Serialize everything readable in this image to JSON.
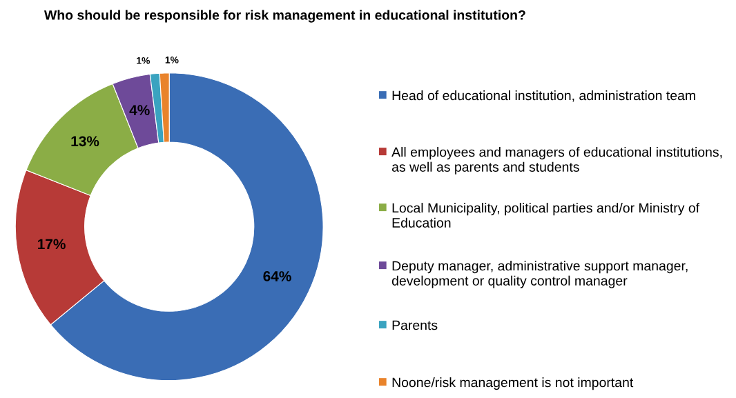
{
  "chart_data": {
    "type": "donut",
    "title": "Who should be responsible for risk management in educational institution?",
    "categories": [
      "Head of educational institution, administration team",
      "All employees and managers of educational institutions, as well as parents and students",
      "Local Municipality, political parties and/or Ministry of Education",
      "Deputy manager, administrative support manager, development or quality control manager",
      "Parents",
      "Noone/risk management is not important"
    ],
    "values": [
      64,
      17,
      13,
      4,
      1,
      1
    ],
    "colors": [
      "#3a6db5",
      "#b73a37",
      "#8bad46",
      "#6e4a99",
      "#3aa3c0",
      "#e9832b"
    ],
    "value_labels": [
      "64%",
      "17%",
      "13%",
      "4%",
      "1%",
      "1%"
    ],
    "legend": "right"
  }
}
